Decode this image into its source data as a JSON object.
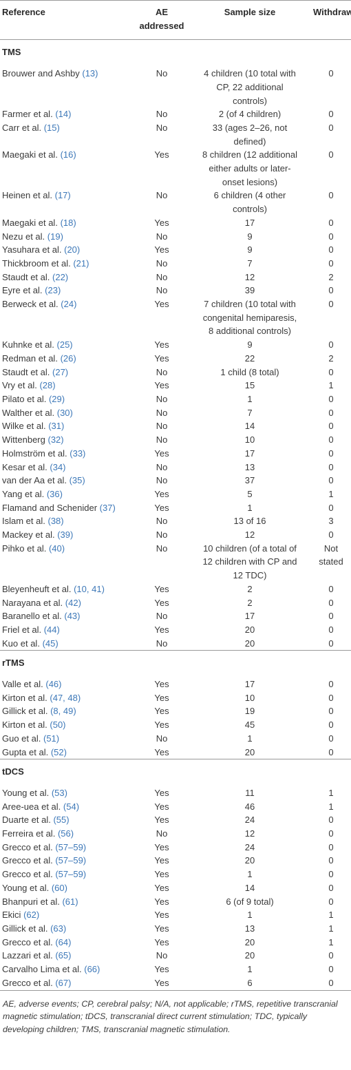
{
  "table": {
    "header": [
      "Reference",
      "AE addressed",
      "Sample size",
      "Withdraws"
    ],
    "sections": [
      {
        "title": "TMS",
        "rows": [
          [
            "Brouwer and Ashby",
            "(13)",
            "No",
            "4 children (10 total with CP, 22 additional controls)",
            "0"
          ],
          [
            "Farmer et al.",
            "(14)",
            "No",
            "2 (of 4 children)",
            "0"
          ],
          [
            "Carr et al.",
            "(15)",
            "No",
            "33 (ages 2–26, not defined)",
            "0"
          ],
          [
            "Maegaki et al.",
            "(16)",
            "Yes",
            "8 children (12 additional either adults or later-onset lesions)",
            "0"
          ],
          [
            "Heinen et al.",
            "(17)",
            "No",
            "6 children (4 other controls)",
            "0"
          ],
          [
            "Maegaki et al.",
            "(18)",
            "Yes",
            "17",
            "0"
          ],
          [
            "Nezu et al.",
            "(19)",
            "No",
            "9",
            "0"
          ],
          [
            "Yasuhara et al.",
            "(20)",
            "Yes",
            "9",
            "0"
          ],
          [
            "Thickbroom et al.",
            "(21)",
            "No",
            "7",
            "0"
          ],
          [
            "Staudt et al.",
            "(22)",
            "No",
            "12",
            "2"
          ],
          [
            "Eyre et al.",
            "(23)",
            "No",
            "39",
            "0"
          ],
          [
            "Berweck et al.",
            "(24)",
            "Yes",
            "7 children (10 total with congenital hemiparesis, 8 additional controls)",
            "0"
          ],
          [
            "Kuhnke et al.",
            "(25)",
            "Yes",
            "9",
            "0"
          ],
          [
            "Redman et al.",
            "(26)",
            "Yes",
            "22",
            "2"
          ],
          [
            "Staudt et al.",
            "(27)",
            "No",
            "1 child (8 total)",
            "0"
          ],
          [
            "Vry et al.",
            "(28)",
            "Yes",
            "15",
            "1"
          ],
          [
            "Pilato et al.",
            "(29)",
            "No",
            "1",
            "0"
          ],
          [
            "Walther et al.",
            "(30)",
            "No",
            "7",
            "0"
          ],
          [
            "Wilke et al.",
            "(31)",
            "No",
            "14",
            "0"
          ],
          [
            "Wittenberg",
            "(32)",
            "No",
            "10",
            "0"
          ],
          [
            "Holmström et al.",
            "(33)",
            "Yes",
            "17",
            "0"
          ],
          [
            "Kesar et al.",
            "(34)",
            "No",
            "13",
            "0"
          ],
          [
            "van der Aa et al.",
            "(35)",
            "No",
            "37",
            "0"
          ],
          [
            "Yang et al.",
            "(36)",
            "Yes",
            "5",
            "1"
          ],
          [
            "Flamand and Schenider",
            "(37)",
            "Yes",
            "1",
            "0"
          ],
          [
            "Islam et al.",
            "(38)",
            "No",
            "13 of 16",
            "3"
          ],
          [
            "Mackey et al.",
            "(39)",
            "No",
            "12",
            "0"
          ],
          [
            "Pihko et al.",
            "(40)",
            "No",
            "10 children (of a total of 12 children with CP and 12 TDC)",
            "Not stated"
          ],
          [
            "Bleyenheuft et al.",
            "(10, 41)",
            "Yes",
            "2",
            "0"
          ],
          [
            "Narayana et al.",
            "(42)",
            "Yes",
            "2",
            "0"
          ],
          [
            "Baranello et al.",
            "(43)",
            "No",
            "17",
            "0"
          ],
          [
            "Friel et al.",
            "(44)",
            "Yes",
            "20",
            "0"
          ],
          [
            "Kuo et al.",
            "(45)",
            "No",
            "20",
            "0"
          ]
        ]
      },
      {
        "title": "rTMS",
        "rows": [
          [
            "Valle et al.",
            "(46)",
            "Yes",
            "17",
            "0"
          ],
          [
            "Kirton et al.",
            "(47, 48)",
            "Yes",
            "10",
            "0"
          ],
          [
            "Gillick et al.",
            "(8, 49)",
            "Yes",
            "19",
            "0"
          ],
          [
            "Kirton et al.",
            "(50)",
            "Yes",
            "45",
            "0"
          ],
          [
            "Guo et al.",
            "(51)",
            "No",
            "1",
            "0"
          ],
          [
            "Gupta et al.",
            "(52)",
            "Yes",
            "20",
            "0"
          ]
        ]
      },
      {
        "title": "tDCS",
        "rows": [
          [
            "Young et al.",
            "(53)",
            "Yes",
            "11",
            "1"
          ],
          [
            "Aree-uea et al.",
            "(54)",
            "Yes",
            "46",
            "1"
          ],
          [
            "Duarte et al.",
            "(55)",
            "Yes",
            "24",
            "0"
          ],
          [
            "Ferreira et al.",
            "(56)",
            "No",
            "12",
            "0"
          ],
          [
            "Grecco et al.",
            "(57–59)",
            "Yes",
            "24",
            "0"
          ],
          [
            "Grecco et al.",
            "(57–59)",
            "Yes",
            "20",
            "0"
          ],
          [
            "Grecco et al.",
            "(57–59)",
            "Yes",
            "1",
            "0"
          ],
          [
            "Young et al.",
            "(60)",
            "Yes",
            "14",
            "0"
          ],
          [
            "Bhanpuri et al.",
            "(61)",
            "Yes",
            "6 (of 9 total)",
            "0"
          ],
          [
            "Ekici",
            "(62)",
            "Yes",
            "1",
            "1"
          ],
          [
            "Gillick et al.",
            "(63)",
            "Yes",
            "13",
            "1"
          ],
          [
            "Grecco et al.",
            "(64)",
            "Yes",
            "20",
            "1"
          ],
          [
            "Lazzari et al.",
            "(65)",
            "No",
            "20",
            "0"
          ],
          [
            "Carvalho Lima et al.",
            "(66)",
            "Yes",
            "1",
            "0"
          ],
          [
            "Grecco et al.",
            "(67)",
            "Yes",
            "6",
            "0"
          ]
        ]
      }
    ]
  },
  "footnote": "AE, adverse events; CP, cerebral palsy; N/A, not applicable; rTMS, repetitive transcranial magnetic stimulation; tDCS, transcranial direct current stimulation; TDC, typically developing children; TMS, transcranial magnetic stimulation."
}
